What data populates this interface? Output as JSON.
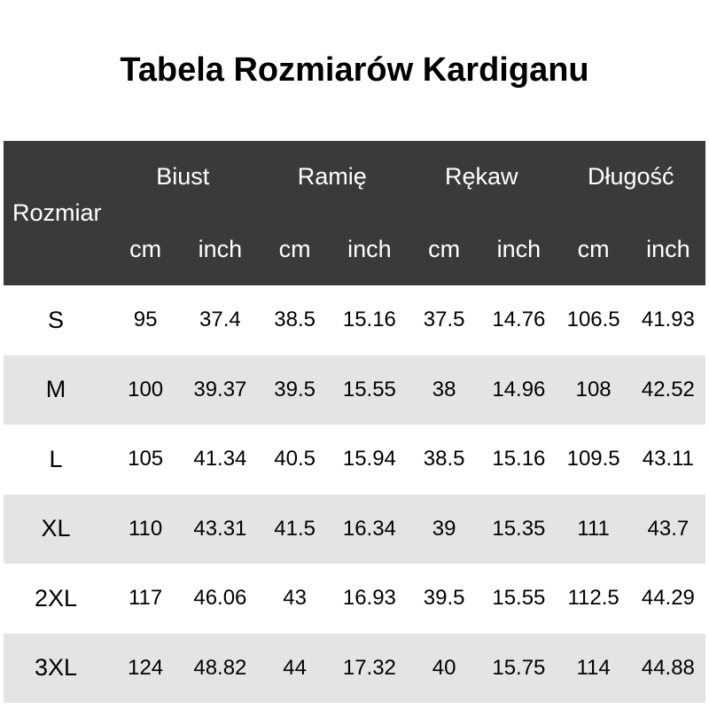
{
  "title": "Tabela Rozmiarów Kardiganu",
  "colors": {
    "header_bg": "#3a3a3a",
    "header_text": "#ffffff",
    "row_even_bg": "#e4e4e4",
    "row_odd_bg": "#ffffff",
    "body_text": "#000000"
  },
  "table": {
    "size_header": "Rozmiar",
    "groups": [
      "Biust",
      "Ramię",
      "Rękaw",
      "Długość"
    ],
    "units": {
      "cm": "cm",
      "inch": "inch"
    },
    "rows": [
      {
        "size": "S",
        "values": [
          "95",
          "37.4",
          "38.5",
          "15.16",
          "37.5",
          "14.76",
          "106.5",
          "41.93"
        ]
      },
      {
        "size": "M",
        "values": [
          "100",
          "39.37",
          "39.5",
          "15.55",
          "38",
          "14.96",
          "108",
          "42.52"
        ]
      },
      {
        "size": "L",
        "values": [
          "105",
          "41.34",
          "40.5",
          "15.94",
          "38.5",
          "15.16",
          "109.5",
          "43.11"
        ]
      },
      {
        "size": "XL",
        "values": [
          "110",
          "43.31",
          "41.5",
          "16.34",
          "39",
          "15.35",
          "111",
          "43.7"
        ]
      },
      {
        "size": "2XL",
        "values": [
          "117",
          "46.06",
          "43",
          "16.93",
          "39.5",
          "15.55",
          "112.5",
          "44.29"
        ]
      },
      {
        "size": "3XL",
        "values": [
          "124",
          "48.82",
          "44",
          "17.32",
          "40",
          "15.75",
          "114",
          "44.88"
        ]
      }
    ]
  },
  "chart_data": {
    "type": "table",
    "title": "Tabela Rozmiarów Kardiganu",
    "columns": [
      "Rozmiar",
      "Biust cm",
      "Biust inch",
      "Ramię cm",
      "Ramię inch",
      "Rękaw cm",
      "Rękaw inch",
      "Długość cm",
      "Długość inch"
    ],
    "rows": [
      [
        "S",
        95,
        37.4,
        38.5,
        15.16,
        37.5,
        14.76,
        106.5,
        41.93
      ],
      [
        "M",
        100,
        39.37,
        39.5,
        15.55,
        38,
        14.96,
        108,
        42.52
      ],
      [
        "L",
        105,
        41.34,
        40.5,
        15.94,
        38.5,
        15.16,
        109.5,
        43.11
      ],
      [
        "XL",
        110,
        43.31,
        41.5,
        16.34,
        39,
        15.35,
        111,
        43.7
      ],
      [
        "2XL",
        117,
        46.06,
        43,
        16.93,
        39.5,
        15.55,
        112.5,
        44.29
      ],
      [
        "3XL",
        124,
        48.82,
        44,
        17.32,
        40,
        15.75,
        114,
        44.88
      ]
    ]
  }
}
